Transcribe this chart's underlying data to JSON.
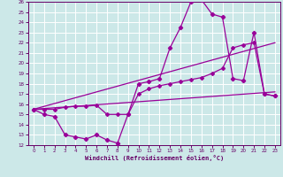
{
  "xlabel": "Windchill (Refroidissement éolien,°C)",
  "xlim": [
    -0.5,
    23.5
  ],
  "ylim": [
    12,
    26
  ],
  "xticks": [
    0,
    1,
    2,
    3,
    4,
    5,
    6,
    7,
    8,
    9,
    10,
    11,
    12,
    13,
    14,
    15,
    16,
    17,
    18,
    19,
    20,
    21,
    22,
    23
  ],
  "yticks": [
    12,
    13,
    14,
    15,
    16,
    17,
    18,
    19,
    20,
    21,
    22,
    23,
    24,
    25,
    26
  ],
  "bg_color": "#cce8e8",
  "grid_color": "#aacccc",
  "line_color": "#990099",
  "line1_x": [
    0,
    1,
    2,
    3,
    4,
    5,
    6,
    7,
    8,
    9,
    10,
    11,
    12,
    13,
    14,
    15,
    16,
    17,
    18,
    19,
    20,
    21,
    22,
    23
  ],
  "line1_y": [
    15.5,
    15.0,
    14.8,
    13.0,
    12.8,
    12.6,
    13.0,
    12.5,
    12.2,
    15.0,
    18.0,
    18.2,
    18.5,
    21.5,
    23.5,
    26.0,
    26.2,
    24.8,
    24.5,
    18.5,
    18.3,
    23.0,
    17.0,
    16.8
  ],
  "line2_x": [
    0,
    1,
    2,
    3,
    4,
    5,
    6,
    7,
    8,
    9,
    10,
    11,
    12,
    13,
    14,
    15,
    16,
    17,
    18,
    19,
    20,
    21,
    22,
    23
  ],
  "line2_y": [
    15.5,
    15.5,
    15.5,
    15.7,
    15.8,
    15.8,
    15.9,
    15.0,
    15.0,
    15.0,
    17.0,
    17.5,
    17.8,
    18.0,
    18.2,
    18.4,
    18.6,
    19.0,
    19.5,
    21.5,
    21.8,
    22.0,
    17.0,
    16.8
  ],
  "line3_x": [
    0,
    23
  ],
  "line3_y": [
    15.5,
    22.0
  ],
  "line4_x": [
    0,
    23
  ],
  "line4_y": [
    15.5,
    17.2
  ]
}
